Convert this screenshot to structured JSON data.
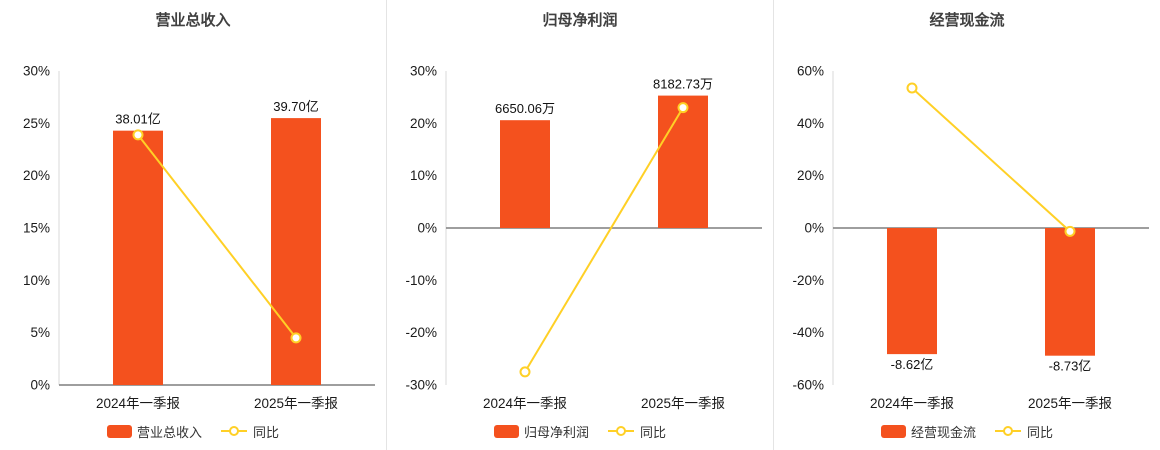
{
  "colors": {
    "bar": "#f4511e",
    "line": "#ffd026",
    "axis": "#7f7f7f",
    "axis_light": "#d9d9d9"
  },
  "chart_data": [
    {
      "type": "bar",
      "title": "营业总收入",
      "categories": [
        "2024年一季报",
        "2025年一季报"
      ],
      "bar_series": {
        "name": "营业总收入",
        "labels": [
          "38.01亿",
          "39.70亿"
        ],
        "display_pct": [
          24.3,
          25.5
        ]
      },
      "line_series": {
        "name": "同比",
        "values_pct": [
          23.9,
          4.5
        ]
      },
      "ylim": [
        0,
        30
      ],
      "ytick_step": 5,
      "ytick_suffix": "%",
      "grid": false,
      "legend_position": "bottom"
    },
    {
      "type": "bar",
      "title": "归母净利润",
      "categories": [
        "2024年一季报",
        "2025年一季报"
      ],
      "bar_series": {
        "name": "归母净利润",
        "labels": [
          "6650.06万",
          "8182.73万"
        ],
        "display_pct": [
          20.6,
          25.3
        ]
      },
      "line_series": {
        "name": "同比",
        "values_pct": [
          -27.5,
          23.0
        ]
      },
      "ylim": [
        -30,
        30
      ],
      "ytick_step": 10,
      "ytick_suffix": "%",
      "grid": false,
      "legend_position": "bottom"
    },
    {
      "type": "bar",
      "title": "经营现金流",
      "categories": [
        "2024年一季报",
        "2025年一季报"
      ],
      "bar_series": {
        "name": "经营现金流",
        "labels": [
          "-8.62亿",
          "-8.73亿"
        ],
        "display_pct": [
          -48.2,
          -48.8
        ]
      },
      "line_series": {
        "name": "同比",
        "values_pct": [
          53.5,
          -1.3
        ]
      },
      "ylim": [
        -60,
        60
      ],
      "ytick_step": 20,
      "ytick_suffix": "%",
      "grid": false,
      "legend_position": "bottom"
    }
  ]
}
